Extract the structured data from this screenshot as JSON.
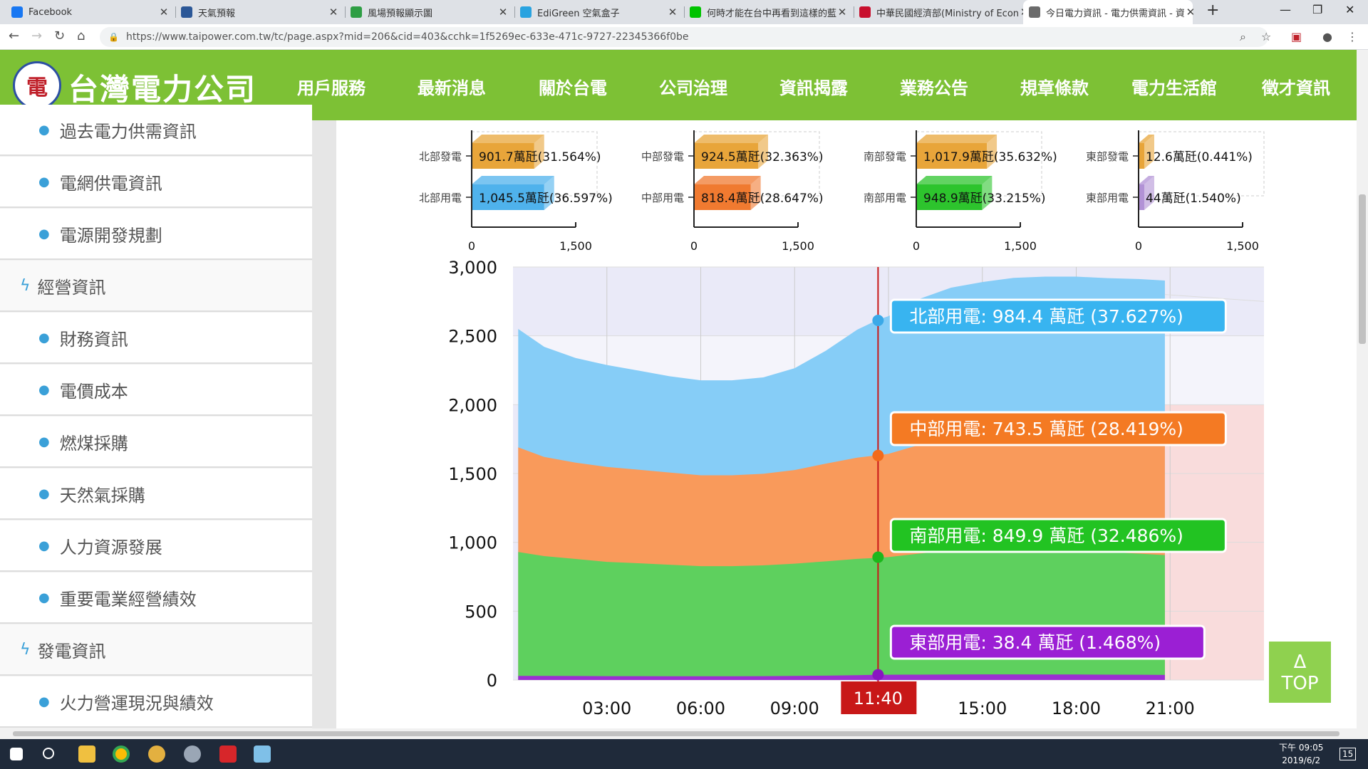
{
  "browser": {
    "tabs": [
      {
        "title": "Facebook",
        "favicon": "facebook-icon",
        "color": "#1877f2"
      },
      {
        "title": "天氣預報",
        "favicon": "eye-icon",
        "color": "#2b5797"
      },
      {
        "title": "風場預報顯示圖",
        "favicon": "map-icon",
        "color": "#2e9e44"
      },
      {
        "title": "EdiGreen 空氣盒子",
        "favicon": "cloud-icon",
        "color": "#29a3e0"
      },
      {
        "title": "何時才能在台中再看到這樣的藍",
        "favicon": "comment-icon",
        "color": "#00c300"
      },
      {
        "title": "中華民國經濟部(Ministry of Econ",
        "favicon": "flag-icon",
        "color": "#c8102e"
      },
      {
        "title": "今日電力資訊 - 電力供需資訊 - 資",
        "favicon": "power-icon",
        "color": "#6b6b6b"
      }
    ],
    "url": "https://www.taipower.com.tw/tc/page.aspx?mid=206&cid=403&cchk=1f5269ec-633e-471c-9727-22345366f0be"
  },
  "site": {
    "brand": "台灣電力公司",
    "nav": [
      "用戶服務",
      "最新消息",
      "關於台電",
      "公司治理",
      "資訊揭露",
      "業務公告",
      "規章條款",
      "電力生活館",
      "徵才資訊"
    ],
    "active_nav": "資訊揭露"
  },
  "sidebar": {
    "items": [
      {
        "label": "過去電力供需資訊",
        "kind": "sub"
      },
      {
        "label": "電網供電資訊",
        "kind": "sub"
      },
      {
        "label": "電源開發規劃",
        "kind": "sub"
      },
      {
        "label": "經營資訊",
        "kind": "cat"
      },
      {
        "label": "財務資訊",
        "kind": "sub"
      },
      {
        "label": "電價成本",
        "kind": "sub"
      },
      {
        "label": "燃煤採購",
        "kind": "sub"
      },
      {
        "label": "天然氣採購",
        "kind": "sub"
      },
      {
        "label": "人力資源發展",
        "kind": "sub"
      },
      {
        "label": "重要電業經營績效",
        "kind": "sub"
      },
      {
        "label": "發電資訊",
        "kind": "cat"
      },
      {
        "label": "火力營運現況與績效",
        "kind": "sub"
      }
    ]
  },
  "chart_data": [
    {
      "type": "bar",
      "regions": [
        {
          "gen_label": "北部發電",
          "gen_value": "901.7",
          "gen_pct": "31.564%",
          "use_label": "北部用電",
          "use_value": "1,045.5",
          "use_pct": "36.597%",
          "gen_color": "#e8a53a",
          "use_color": "#4fb2ec"
        },
        {
          "gen_label": "中部發電",
          "gen_value": "924.5",
          "gen_pct": "32.363%",
          "use_label": "中部用電",
          "use_value": "818.4",
          "use_pct": "28.647%",
          "gen_color": "#e8a53a",
          "use_color": "#f07a30"
        },
        {
          "gen_label": "南部發電",
          "gen_value": "1,017.9",
          "gen_pct": "35.632%",
          "use_label": "南部用電",
          "use_value": "948.9",
          "use_pct": "33.215%",
          "gen_color": "#e8a53a",
          "use_color": "#2dc42d"
        },
        {
          "gen_label": "東部發電",
          "gen_value": "12.6",
          "gen_pct": "0.441%",
          "use_label": "東部用電",
          "use_value": "44",
          "use_pct": "1.540%",
          "gen_color": "#e8a53a",
          "use_color": "#b292d6"
        }
      ],
      "unit": "萬瓩",
      "xticks": [
        "0",
        "1,500"
      ],
      "xlim": [
        0,
        1500
      ]
    },
    {
      "type": "area",
      "stacked": true,
      "unit": "萬瓩",
      "ylim": [
        0,
        3000
      ],
      "yticks": [
        "3,000",
        "2,500",
        "2,000",
        "1,500",
        "1,000",
        "500",
        "0"
      ],
      "xticks": [
        "03:00",
        "06:00",
        "09:00",
        "15:00",
        "18:00",
        "21:00"
      ],
      "current_time": "11:40",
      "x": [
        "00:10",
        "01:00",
        "02:00",
        "03:00",
        "04:00",
        "05:00",
        "06:00",
        "07:00",
        "08:00",
        "09:00",
        "10:00",
        "11:00",
        "11:40",
        "12:00",
        "13:00",
        "14:00",
        "15:00",
        "16:00",
        "17:00",
        "18:00",
        "19:00",
        "20:00",
        "20:50"
      ],
      "series": [
        {
          "name": "東部用電",
          "color": "#9b2fd1",
          "values": [
            30,
            30,
            29,
            28,
            28,
            27,
            27,
            27,
            28,
            30,
            32,
            35,
            38,
            38,
            39,
            40,
            41,
            41,
            40,
            40,
            39,
            38,
            37
          ]
        },
        {
          "name": "南部用電",
          "color": "#5ed05e",
          "values": [
            900,
            870,
            850,
            830,
            820,
            810,
            800,
            800,
            805,
            815,
            830,
            845,
            850,
            855,
            880,
            900,
            910,
            920,
            910,
            905,
            890,
            880,
            870
          ]
        },
        {
          "name": "中部用電",
          "color": "#f99a5b",
          "values": [
            760,
            720,
            700,
            690,
            680,
            670,
            660,
            660,
            665,
            680,
            710,
            735,
            745,
            750,
            790,
            810,
            820,
            830,
            840,
            845,
            850,
            860,
            865
          ]
        },
        {
          "name": "北部用電",
          "color": "#86cdf7",
          "values": [
            860,
            800,
            760,
            740,
            720,
            700,
            690,
            690,
            700,
            740,
            820,
            930,
            984,
            1000,
            1060,
            1100,
            1120,
            1130,
            1140,
            1140,
            1140,
            1135,
            1130
          ]
        }
      ],
      "tooltips": [
        {
          "label": "北部用電: 984.4 萬瓩 (37.627%)",
          "color": "#38b4f0",
          "dot": "#3aa9e8"
        },
        {
          "label": "中部用電: 743.5 萬瓩 (28.419%)",
          "color": "#f47a23",
          "dot": "#f26a1b"
        },
        {
          "label": "南部用電: 849.9 萬瓩 (32.486%)",
          "color": "#22c322",
          "dot": "#1cb81c"
        },
        {
          "label": "東部用電: 38.4 萬瓩 (1.468%)",
          "color": "#9b1fd4",
          "dot": "#8a15c2"
        }
      ]
    }
  ],
  "top_button": {
    "arrow": "Δ",
    "label": "TOP"
  },
  "taskbar": {
    "time": "下午 09:05",
    "date": "2019/6/2",
    "badge": "15"
  }
}
